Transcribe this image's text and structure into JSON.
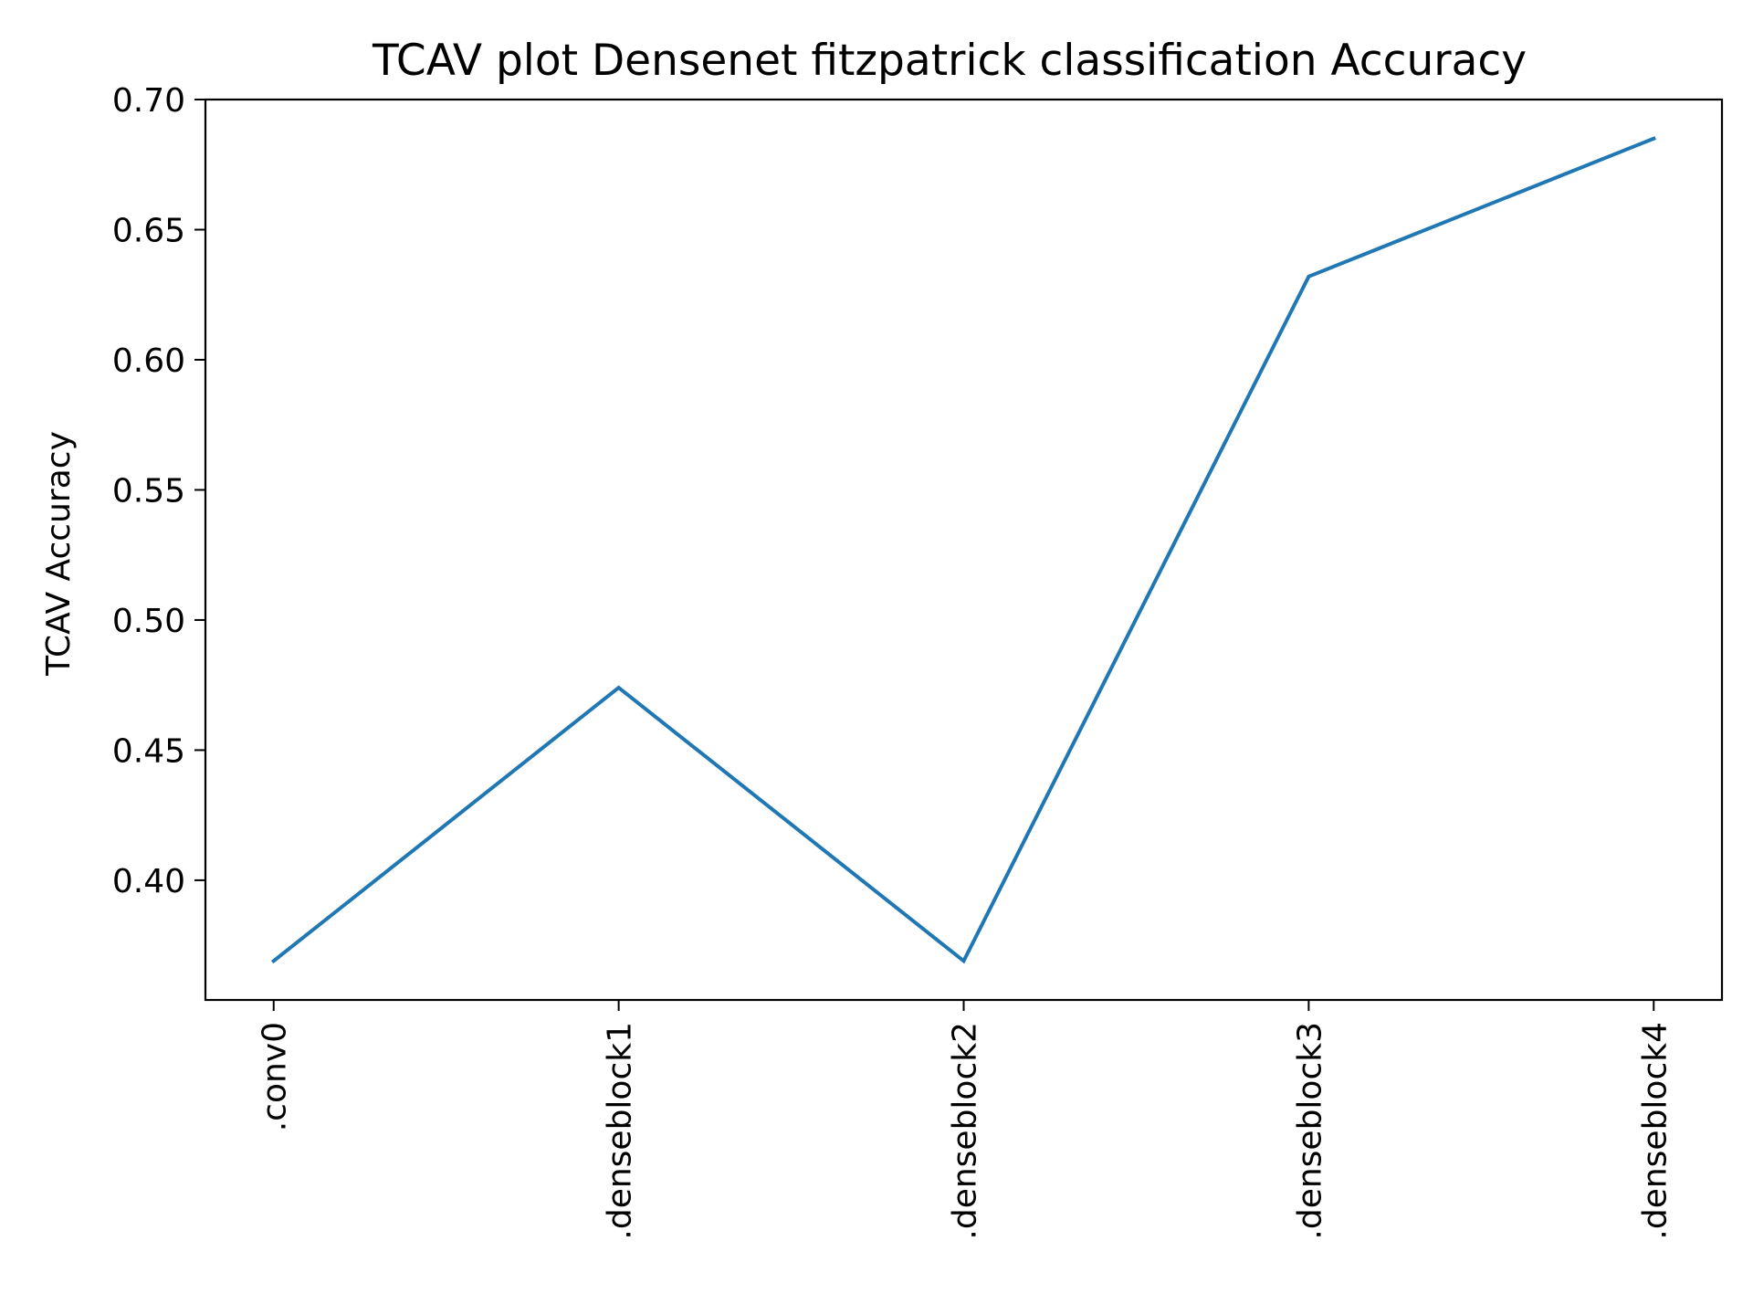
{
  "chart_data": {
    "type": "line",
    "title": "TCAV plot Densenet fitzpatrick classification Accuracy",
    "xlabel": "",
    "ylabel": "TCAV Accuracy",
    "categories": [
      ".conv0",
      ".denseblock1",
      ".denseblock2",
      ".denseblock3",
      ".denseblock4"
    ],
    "series": [
      {
        "values": [
          0.369,
          0.474,
          0.369,
          0.632,
          0.685
        ]
      }
    ],
    "ylim": [
      0.354,
      0.7
    ],
    "yticks": [
      "0.40",
      "0.45",
      "0.50",
      "0.55",
      "0.60",
      "0.65",
      "0.70"
    ],
    "grid": false,
    "line_color": "#1f77b4"
  }
}
